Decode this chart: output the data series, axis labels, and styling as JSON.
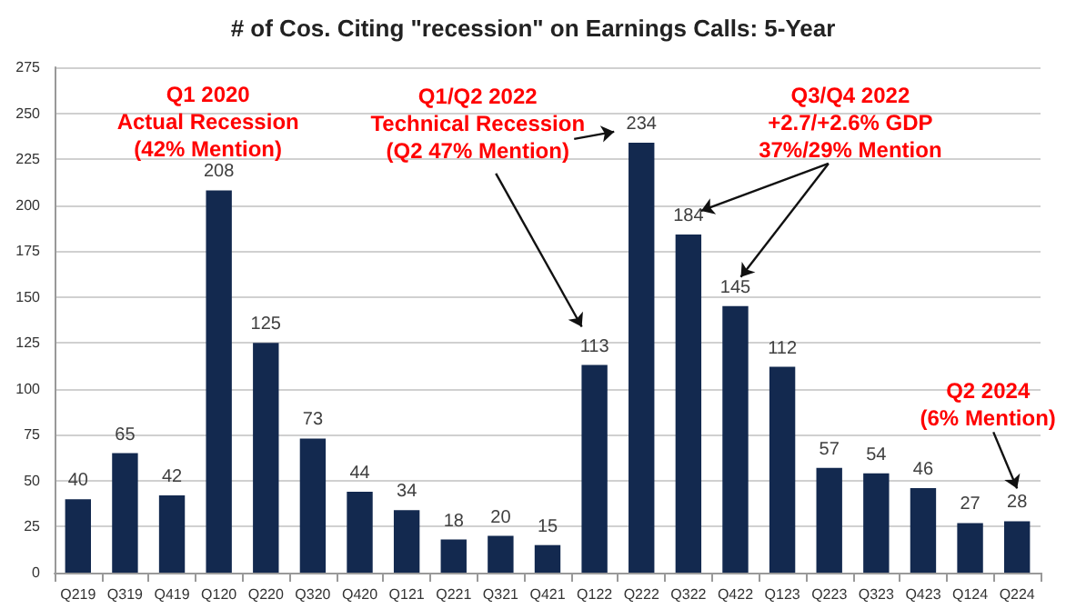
{
  "chart_data": {
    "type": "bar",
    "title": "# of Cos. Citing \"recession\" on Earnings Calls: 5-Year",
    "categories": [
      "Q219",
      "Q319",
      "Q419",
      "Q120",
      "Q220",
      "Q320",
      "Q420",
      "Q121",
      "Q221",
      "Q321",
      "Q421",
      "Q122",
      "Q222",
      "Q322",
      "Q422",
      "Q123",
      "Q223",
      "Q323",
      "Q423",
      "Q124",
      "Q224"
    ],
    "values": [
      40,
      65,
      42,
      208,
      125,
      73,
      44,
      34,
      18,
      20,
      15,
      113,
      234,
      184,
      145,
      112,
      57,
      54,
      46,
      27,
      28
    ],
    "color": "#13294f",
    "ylim": [
      0,
      275
    ],
    "yticks": [
      0,
      25,
      50,
      75,
      100,
      125,
      150,
      175,
      200,
      225,
      250,
      275
    ],
    "grid": "y",
    "data_labels": true,
    "annotations": [
      {
        "text": "Q1 2020\nActual Recession\n(42% Mention)",
        "x": "Q120",
        "y": 208
      },
      {
        "text": "Q1/Q2 2022\nTechnical Recession\n(Q2 47% Mention)",
        "x": "Q222",
        "y": 234
      },
      "Q3/Q4 2022\n+2.7/+2.6% GDP\n37%/29% Mention",
      "Q2 2024\n(6% Mention)"
    ]
  }
}
